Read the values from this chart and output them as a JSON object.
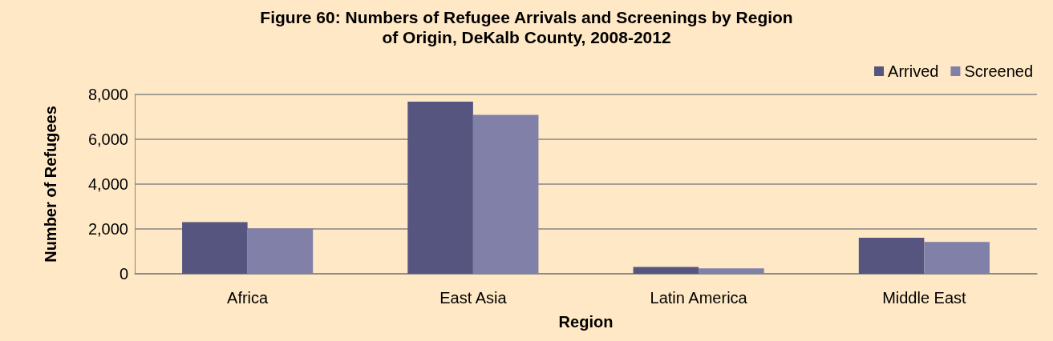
{
  "chart_data": {
    "type": "bar",
    "title": "Figure 60: Numbers of Refugee Arrivals and Screenings by Region\nof Origin, DeKalb County, 2008-2012",
    "xlabel": "Region",
    "ylabel": "Number of Refugees",
    "categories": [
      "Africa",
      "East Asia",
      "Latin America",
      "Middle East"
    ],
    "series": [
      {
        "name": "Arrived",
        "color": "#55557f",
        "values": [
          2300,
          7680,
          300,
          1610
        ]
      },
      {
        "name": "Screened",
        "color": "#8080a8",
        "values": [
          2020,
          7090,
          240,
          1420
        ]
      }
    ],
    "ylim": [
      0,
      8000
    ],
    "yticks": [
      0,
      {
        "value": 2000,
        "label": "2,000"
      },
      {
        "value": 4000,
        "label": "4,000"
      },
      {
        "value": 6000,
        "label": "6,000"
      },
      {
        "value": 8000,
        "label": "8,000"
      }
    ],
    "grid": "y",
    "legend": "top right"
  }
}
